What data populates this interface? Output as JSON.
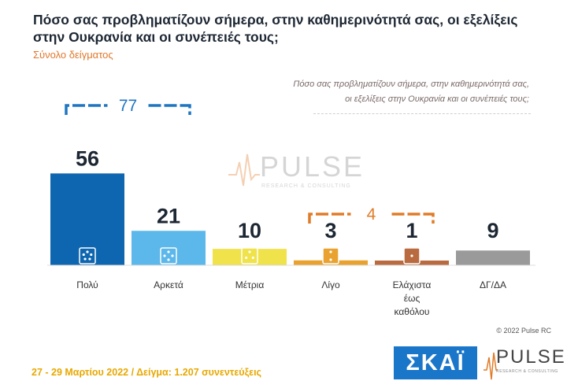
{
  "title": "Πόσο σας προβληματίζουν σήμερα, στην καθημερινότητά σας, οι εξελίξεις στην Ουκρανία και οι συνέπειές τους;",
  "subtitle": "Σύνολο δείγματος",
  "question_note_line1": "Πόσο σας προβληματίζουν σήμερα, στην καθημερινότητά σας,",
  "question_note_line2": "οι εξελίξεις στην Ουκρανία και οι συνέπειές τους;",
  "watermark": {
    "name": "PULSE",
    "tagline": "RESEARCH & CONSULTING"
  },
  "copyright": "© 2022 Pulse RC",
  "footer": "27 - 29 Μαρτίου 2022 / Δείγμα: 1.207 συνεντεύξεις",
  "logos": {
    "skai": "ΣΚΑΪ",
    "pulse": "PULSE",
    "pulse_tagline": "RESEARCH & CONSULTING"
  },
  "colors": {
    "group_high": "#1f76c0",
    "group_low": "#e07c28"
  },
  "chart_data": {
    "type": "bar",
    "title": "Πόσο σας προβληματίζουν σήμερα, στην καθημερινότητά σας, οι εξελίξεις στην Ουκρανία και οι συνέπειές τους;",
    "subtitle": "Σύνολο δείγματος",
    "categories": [
      "Πολύ",
      "Αρκετά",
      "Μέτρια",
      "Λίγο",
      "Ελάχιστα έως καθόλου",
      "ΔΓ/ΔΑ"
    ],
    "values": [
      56,
      21,
      10,
      3,
      1,
      9
    ],
    "colors": [
      "#0f66b0",
      "#5cb7ea",
      "#efe24a",
      "#e9a230",
      "#b96a3e",
      "#9a9a9a"
    ],
    "ylim": [
      0,
      60
    ],
    "grid": false,
    "groups": [
      {
        "label": "77",
        "categories": [
          "Πολύ",
          "Αρκετά"
        ],
        "value": 77,
        "color": "#1f76c0"
      },
      {
        "label": "4",
        "categories": [
          "Λίγο",
          "Ελάχιστα έως καθόλου"
        ],
        "value": 4,
        "color": "#e07c28"
      }
    ]
  }
}
